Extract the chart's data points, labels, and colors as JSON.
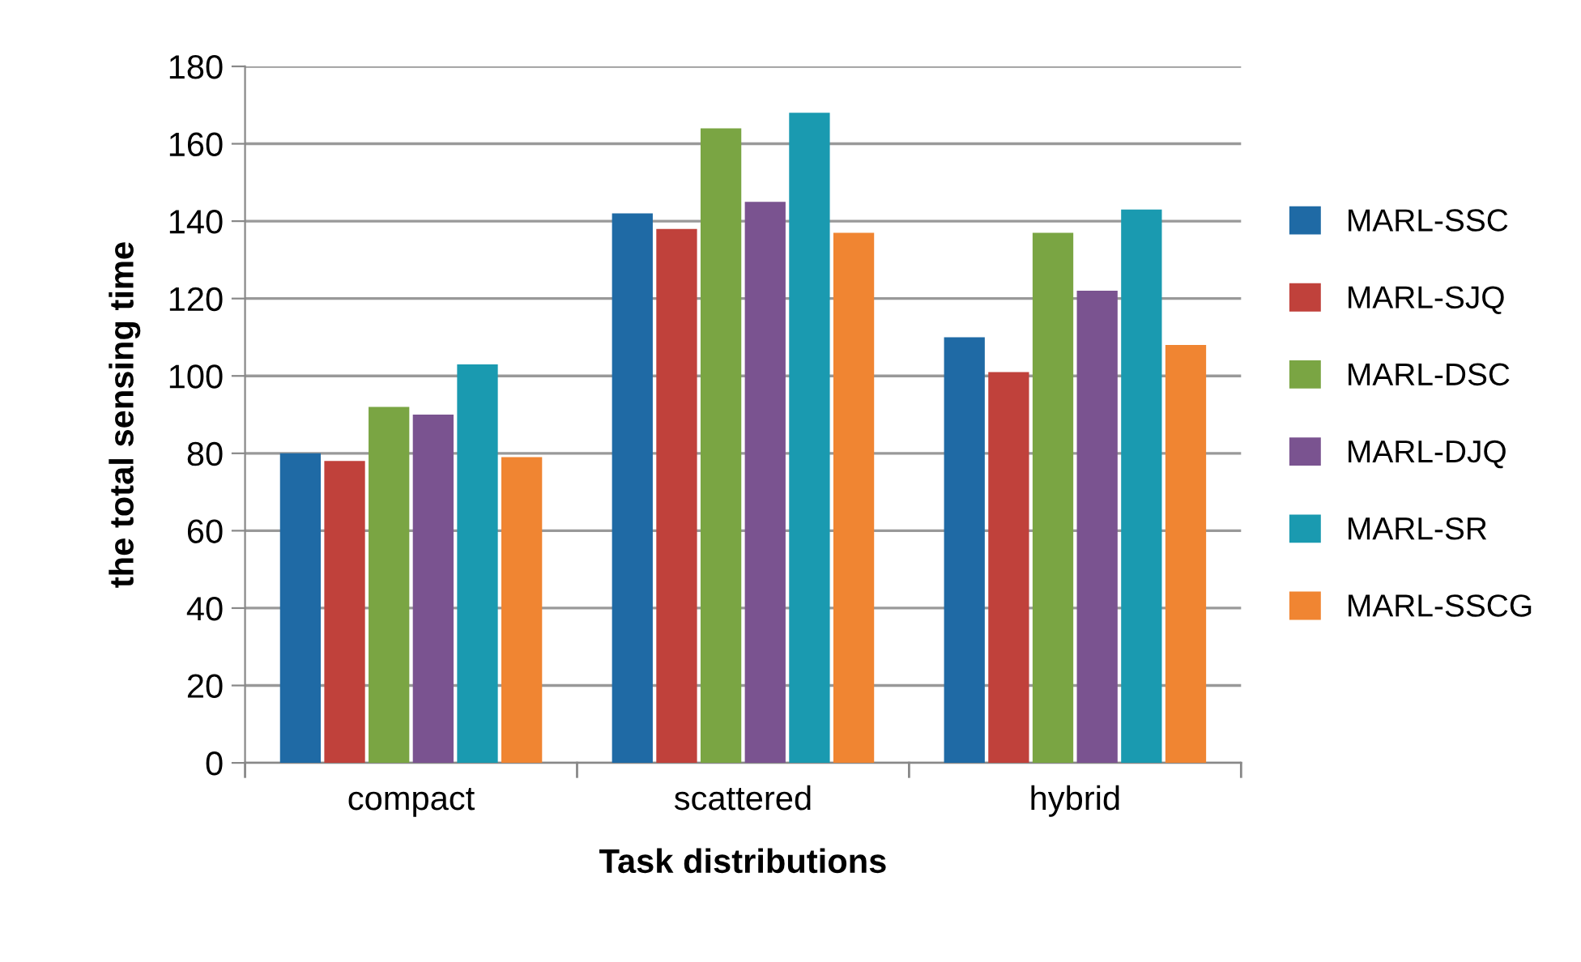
{
  "chart_data": {
    "type": "bar",
    "xlabel": "Task distributions",
    "ylabel": "the total sensing time",
    "categories": [
      "compact",
      "scattered",
      "hybrid"
    ],
    "series": [
      {
        "name": "MARL-SSC",
        "color": "#1f6aa5",
        "values": [
          80,
          142,
          110
        ]
      },
      {
        "name": "MARL-SJQ",
        "color": "#c0413b",
        "values": [
          78,
          138,
          101
        ]
      },
      {
        "name": "MARL-DSC",
        "color": "#7aa543",
        "values": [
          92,
          164,
          137
        ]
      },
      {
        "name": "MARL-DJQ",
        "color": "#7a5390",
        "values": [
          90,
          145,
          122
        ]
      },
      {
        "name": "MARL-SR",
        "color": "#1a9ab0",
        "values": [
          103,
          168,
          143
        ]
      },
      {
        "name": "MARL-SSCG",
        "color": "#f08532",
        "values": [
          79,
          137,
          108
        ]
      }
    ],
    "ylim": [
      0,
      180
    ],
    "yticks": [
      0,
      20,
      40,
      60,
      80,
      100,
      120,
      140,
      160,
      180
    ],
    "grid": "y",
    "legend": "right"
  }
}
